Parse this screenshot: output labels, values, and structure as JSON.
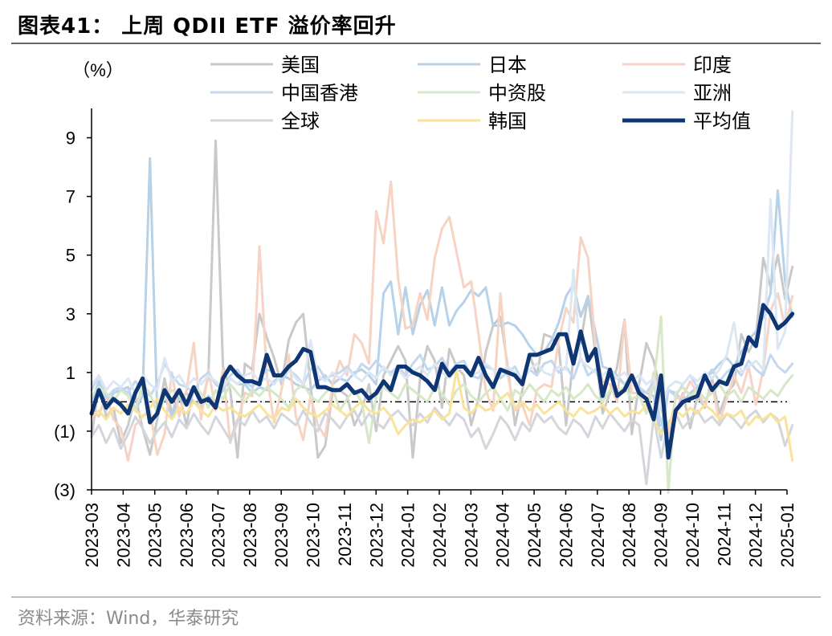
{
  "header": {
    "title": "图表41：  上周 QDII ETF 溢价率回升"
  },
  "footer": {
    "source": "资料来源：Wind，华泰研究"
  },
  "chart_data": {
    "type": "line",
    "title": "图表41：  上周 QDII ETF 溢价率回升",
    "ylabel": "（%）",
    "xlabel": "",
    "ylim": [
      -3,
      10
    ],
    "yticks": [
      9,
      7,
      5,
      3,
      1,
      -1,
      -3
    ],
    "ytick_labels": [
      "9",
      "7",
      "5",
      "3",
      "1",
      "(1)",
      "(3)"
    ],
    "x_tick_labels": [
      "2023-03",
      "2023-04",
      "2023-05",
      "2023-06",
      "2023-07",
      "2023-08",
      "2023-09",
      "2023-10",
      "2023-11",
      "2023-12",
      "2024-01",
      "2024-02",
      "2024-03",
      "2024-04",
      "2024-05",
      "2024-06",
      "2024-07",
      "2024-08",
      "2024-09",
      "2024-10",
      "2024-11",
      "2024-12",
      "2025-01"
    ],
    "x_unit": "weeks since 2023-03 (weekly observations, 4.33 weeks per month)",
    "zero_line": "dash-dot",
    "legend_position": "top",
    "series": [
      {
        "name": "美国",
        "color": "#c9c9c9",
        "width": 3,
        "values": [
          -1.2,
          0.6,
          -0.5,
          -0.2,
          -1.4,
          -0.8,
          0.2,
          -0.9,
          -1.8,
          -0.6,
          0.8,
          -0.4,
          0.3,
          -0.8,
          0.5,
          -0.2,
          0.9,
          8.9,
          1.2,
          0.4,
          -1.9,
          1.3,
          1.1,
          3.0,
          2.2,
          1.5,
          0.6,
          2.1,
          2.7,
          3.0,
          0.6,
          -1.9,
          -1.5,
          0.3,
          0.4,
          0.2,
          -0.8,
          -0.3,
          0.6,
          -1.0,
          0.9,
          1.4,
          1.9,
          1.4,
          -1.9,
          0.8,
          1.9,
          1.4,
          -0.2,
          1.8,
          1.2,
          0.9,
          -0.8,
          0.1,
          1.7,
          2.6,
          2.9,
          1.2,
          -0.8,
          0.4,
          1.6,
          0.9,
          2.3,
          2.2,
          1.9,
          -0.8,
          1.5,
          2.0,
          3.6,
          1.7,
          -0.4,
          0.3,
          1.2,
          2.8,
          -1.1,
          0.6,
          2.0,
          1.4,
          0.2,
          -1.1,
          -0.4,
          0.3,
          -0.9,
          0.2,
          -0.2,
          0.8,
          -0.4,
          0.3,
          0.6,
          2.3,
          1.7,
          2.2,
          4.9,
          3.9,
          5.0,
          3.5,
          4.6
        ]
      },
      {
        "name": "日本",
        "color": "#b6d1e8",
        "width": 3,
        "values": [
          0.0,
          0.7,
          -0.3,
          0.3,
          0.4,
          0.5,
          -0.3,
          0.2,
          8.3,
          -0.4,
          0.2,
          -0.5,
          0.1,
          0.3,
          0.0,
          -0.1,
          0.2,
          0.0,
          0.4,
          0.8,
          0.6,
          0.6,
          0.3,
          0.5,
          0.4,
          0.7,
          0.9,
          0.8,
          0.6,
          0.5,
          0.4,
          0.7,
          0.9,
          0.6,
          0.8,
          0.7,
          1.0,
          1.1,
          0.9,
          0.6,
          3.7,
          4.1,
          2.3,
          3.9,
          2.3,
          3.3,
          3.8,
          2.6,
          3.9,
          2.6,
          3.1,
          3.4,
          3.8,
          3.6,
          3.9,
          2.6,
          2.6,
          2.7,
          2.6,
          2.3,
          1.9,
          1.6,
          1.7,
          2.1,
          2.7,
          3.6,
          4.0,
          2.9,
          3.6,
          2.4,
          1.2,
          1.1,
          0.9,
          0.6,
          0.8,
          0.4,
          0.3,
          0.2,
          -1.3,
          0.4,
          0.3,
          0.0,
          0.3,
          0.5,
          0.8,
          1.0,
          1.3,
          1.5,
          1.2,
          1.7,
          2.1,
          2.4,
          2.9,
          3.7,
          7.2,
          4.1,
          2.9
        ]
      },
      {
        "name": "印度",
        "color": "#f6d3c2",
        "width": 3,
        "values": [
          -0.3,
          -0.5,
          0.3,
          -0.6,
          -0.9,
          -2.0,
          -0.8,
          -0.5,
          -0.3,
          -1.8,
          -1.1,
          1.0,
          -0.5,
          0.4,
          2.0,
          -0.6,
          1.1,
          -0.3,
          1.1,
          -1.4,
          -0.7,
          0.3,
          0.2,
          5.3,
          0.9,
          -0.7,
          0.4,
          1.6,
          -0.5,
          -1.3,
          0.2,
          -0.8,
          -1.2,
          0.6,
          1.4,
          0.9,
          2.3,
          2.0,
          1.3,
          6.5,
          5.4,
          7.5,
          4.2,
          2.5,
          2.6,
          3.7,
          2.8,
          4.9,
          5.9,
          6.3,
          5.1,
          3.9,
          4.1,
          2.3,
          0.4,
          -0.3,
          3.7,
          0.9,
          -0.3,
          -0.1,
          -0.8,
          0.4,
          0.6,
          0.5,
          2.1,
          3.2,
          2.7,
          5.6,
          4.9,
          1.9,
          0.7,
          0.6,
          0.0,
          2.8,
          0.3,
          0.3,
          -0.4,
          1.0,
          -0.2,
          -1.1,
          0.1,
          0.2,
          0.7,
          0.3,
          -0.1,
          0.6,
          -0.7,
          0.1,
          0.9,
          0.3,
          1.2,
          -0.1,
          1.1,
          3.1,
          3.7,
          2.5,
          3.6
        ]
      },
      {
        "name": "中国香港",
        "color": "#c3d8ef",
        "width": 3,
        "values": [
          0.4,
          0.9,
          0.1,
          0.4,
          0.5,
          0.3,
          0.7,
          0.4,
          0.2,
          0.6,
          1.3,
          0.9,
          0.6,
          0.5,
          0.3,
          0.8,
          1.0,
          0.6,
          0.4,
          0.9,
          1.1,
          0.7,
          0.5,
          0.8,
          1.1,
          1.0,
          0.7,
          1.1,
          0.9,
          0.6,
          1.1,
          1.2,
          0.8,
          0.9,
          1.0,
          1.2,
          0.9,
          1.3,
          1.1,
          1.4,
          1.1,
          1.0,
          1.2,
          0.9,
          1.3,
          1.6,
          1.1,
          1.2,
          1.5,
          1.0,
          1.3,
          1.4,
          0.9,
          0.8,
          1.2,
          1.1,
          0.8,
          1.0,
          1.2,
          0.7,
          1.1,
          0.9,
          1.3,
          1.4,
          1.0,
          1.2,
          0.8,
          1.5,
          0.9,
          1.1,
          0.4,
          1.0,
          0.8,
          0.6,
          0.9,
          0.5,
          0.3,
          0.7,
          -0.8,
          0.4,
          0.2,
          0.6,
          0.9,
          0.5,
          0.8,
          1.1,
          0.7,
          1.0,
          1.2,
          0.9,
          1.4,
          1.1,
          0.9,
          1.6,
          1.2,
          1.0,
          1.3
        ]
      },
      {
        "name": "中资股",
        "color": "#d6e8c8",
        "width": 3,
        "values": [
          0.2,
          0.5,
          0.3,
          0.0,
          0.4,
          0.2,
          -0.3,
          0.6,
          0.3,
          -0.4,
          0.1,
          0.4,
          0.2,
          0.0,
          0.5,
          0.3,
          -0.2,
          0.4,
          0.1,
          0.6,
          0.3,
          0.0,
          0.4,
          0.2,
          0.5,
          0.3,
          0.1,
          -0.2,
          0.4,
          0.6,
          0.2,
          0.0,
          0.3,
          0.5,
          -0.3,
          0.1,
          0.4,
          0.0,
          -1.4,
          0.2,
          0.5,
          0.3,
          0.1,
          0.6,
          0.4,
          0.2,
          0.0,
          0.5,
          0.3,
          -0.1,
          0.4,
          0.6,
          0.2,
          0.0,
          0.3,
          0.5,
          0.1,
          -0.3,
          0.4,
          0.2,
          0.6,
          0.3,
          0.0,
          0.4,
          0.2,
          0.5,
          0.1,
          0.3,
          0.6,
          0.2,
          0.0,
          0.4,
          0.3,
          0.5,
          0.1,
          0.2,
          -0.4,
          0.6,
          2.9,
          -3.1,
          0.3,
          0.5,
          0.2,
          0.4,
          0.1,
          0.3,
          0.6,
          0.2,
          0.4,
          0.0,
          0.5,
          0.3,
          0.1,
          0.4,
          0.2,
          0.6,
          0.9
        ]
      },
      {
        "name": "亚洲",
        "color": "#dde7f3",
        "width": 3,
        "values": [
          0.6,
          0.9,
          0.4,
          0.7,
          0.5,
          0.8,
          0.3,
          0.9,
          0.6,
          0.4,
          1.5,
          0.7,
          0.9,
          0.5,
          0.8,
          0.6,
          0.9,
          0.7,
          0.5,
          0.8,
          0.6,
          0.9,
          1.0,
          0.7,
          0.8,
          0.6,
          0.9,
          1.1,
          0.8,
          0.6,
          2.1,
          0.9,
          0.7,
          1.0,
          0.8,
          1.1,
          0.9,
          0.7,
          1.0,
          0.8,
          1.2,
          0.9,
          1.1,
          0.8,
          1.0,
          1.2,
          0.9,
          1.3,
          1.0,
          0.8,
          1.1,
          1.2,
          0.9,
          1.0,
          1.3,
          1.1,
          0.9,
          1.2,
          1.0,
          0.8,
          1.1,
          1.3,
          1.0,
          0.9,
          1.2,
          1.1,
          4.5,
          1.4,
          1.2,
          1.0,
          0.9,
          1.1,
          0.8,
          1.0,
          0.7,
          0.9,
          0.6,
          0.8,
          -0.2,
          0.5,
          0.7,
          0.6,
          0.9,
          0.7,
          1.0,
          0.8,
          1.1,
          1.6,
          2.7,
          1.0,
          1.2,
          1.4,
          1.1,
          6.9,
          1.8,
          2.4,
          9.9
        ]
      },
      {
        "name": "全球",
        "color": "#d3d6dc",
        "width": 3,
        "values": [
          -1.2,
          -0.8,
          -1.4,
          -0.9,
          -1.6,
          -1.1,
          -0.5,
          -0.9,
          -1.4,
          -1.0,
          -0.7,
          -1.2,
          -0.6,
          -0.9,
          -0.4,
          -0.8,
          -1.1,
          -0.5,
          -0.9,
          -1.3,
          -0.6,
          -0.8,
          -0.3,
          -0.7,
          -0.5,
          -0.9,
          -0.4,
          -0.6,
          -0.8,
          -0.3,
          -0.7,
          -1.0,
          -0.4,
          -0.6,
          -0.9,
          -0.5,
          -0.3,
          -0.8,
          -0.4,
          -0.7,
          -0.9,
          -0.5,
          -0.3,
          -0.6,
          -0.8,
          -0.4,
          -0.7,
          -0.2,
          -0.5,
          -0.8,
          -0.4,
          -0.6,
          -1.2,
          -0.9,
          -1.6,
          -1.1,
          -0.5,
          -0.8,
          -1.3,
          -0.7,
          -1.0,
          -0.4,
          -0.7,
          -0.5,
          -0.9,
          -1.1,
          -0.6,
          -0.8,
          -1.2,
          -0.5,
          -0.9,
          -0.4,
          -0.7,
          -1.0,
          -0.6,
          -0.8,
          -2.8,
          -0.5,
          -1.9,
          -0.7,
          -0.4,
          -0.9,
          -0.6,
          -0.3,
          -0.7,
          -0.5,
          -0.8,
          -0.4,
          -0.6,
          -0.9,
          -0.5,
          -0.3,
          -0.7,
          -0.4,
          -0.6,
          -1.5,
          -0.8
        ]
      },
      {
        "name": "韩国",
        "color": "#f9e39a",
        "width": 3,
        "values": [
          -0.5,
          -0.3,
          -0.6,
          -0.2,
          -0.4,
          -0.1,
          -0.3,
          -0.5,
          -0.2,
          0.1,
          -0.3,
          -0.6,
          -0.2,
          -0.4,
          0.0,
          -0.3,
          -0.5,
          -0.1,
          -0.3,
          -0.2,
          -0.4,
          -0.5,
          -0.3,
          -0.1,
          -0.4,
          -0.6,
          -0.2,
          -0.3,
          0.1,
          -0.2,
          -0.4,
          -0.5,
          -0.3,
          -0.1,
          -0.3,
          -0.5,
          -0.2,
          0.0,
          -0.3,
          -0.4,
          -0.2,
          -0.5,
          -1.1,
          -0.8,
          -0.6,
          -0.7,
          -0.5,
          -0.3,
          -0.6,
          -0.4,
          1.1,
          -0.2,
          -0.4,
          -0.1,
          -0.3,
          -0.2,
          0.1,
          0.3,
          -0.2,
          0.0,
          -0.3,
          -0.1,
          -0.4,
          -0.2,
          0.0,
          -0.3,
          -0.5,
          -0.2,
          -0.4,
          -0.3,
          -0.1,
          -0.4,
          -0.2,
          -0.5,
          -0.3,
          -0.4,
          -0.1,
          -0.6,
          -1.1,
          -0.8,
          -0.3,
          -0.5,
          -0.2,
          -0.4,
          -0.1,
          -0.3,
          -0.6,
          -0.4,
          -0.5,
          -0.3,
          -0.8,
          -0.5,
          -0.6,
          -0.4,
          -0.7,
          -0.5,
          -2.0
        ]
      },
      {
        "name": "平均值",
        "color": "#0e3574",
        "width": 5,
        "values": [
          -0.4,
          0.4,
          -0.2,
          0.1,
          -0.1,
          -0.4,
          0.3,
          0.8,
          -0.7,
          -0.4,
          0.4,
          0.0,
          0.4,
          -0.1,
          0.5,
          0.0,
          0.1,
          -0.2,
          0.8,
          1.2,
          0.9,
          0.7,
          0.7,
          0.6,
          1.6,
          0.9,
          0.9,
          1.2,
          1.4,
          1.8,
          1.7,
          0.5,
          0.5,
          0.4,
          0.4,
          0.6,
          0.3,
          0.4,
          0.1,
          0.3,
          0.7,
          0.4,
          1.2,
          1.2,
          1.0,
          0.9,
          0.7,
          0.4,
          1.3,
          0.9,
          1.2,
          1.2,
          0.9,
          1.5,
          0.9,
          0.5,
          1.1,
          1.0,
          0.9,
          0.6,
          1.6,
          1.6,
          1.7,
          1.8,
          2.3,
          2.3,
          1.3,
          2.4,
          1.4,
          1.8,
          0.2,
          1.1,
          0.2,
          0.4,
          0.9,
          0.3,
          0.1,
          -0.6,
          0.9,
          -1.9,
          -0.3,
          0.0,
          0.1,
          0.2,
          0.9,
          0.4,
          0.7,
          0.6,
          1.2,
          1.3,
          2.2,
          1.9,
          3.3,
          3.0,
          2.5,
          2.7,
          3.0
        ]
      }
    ]
  }
}
